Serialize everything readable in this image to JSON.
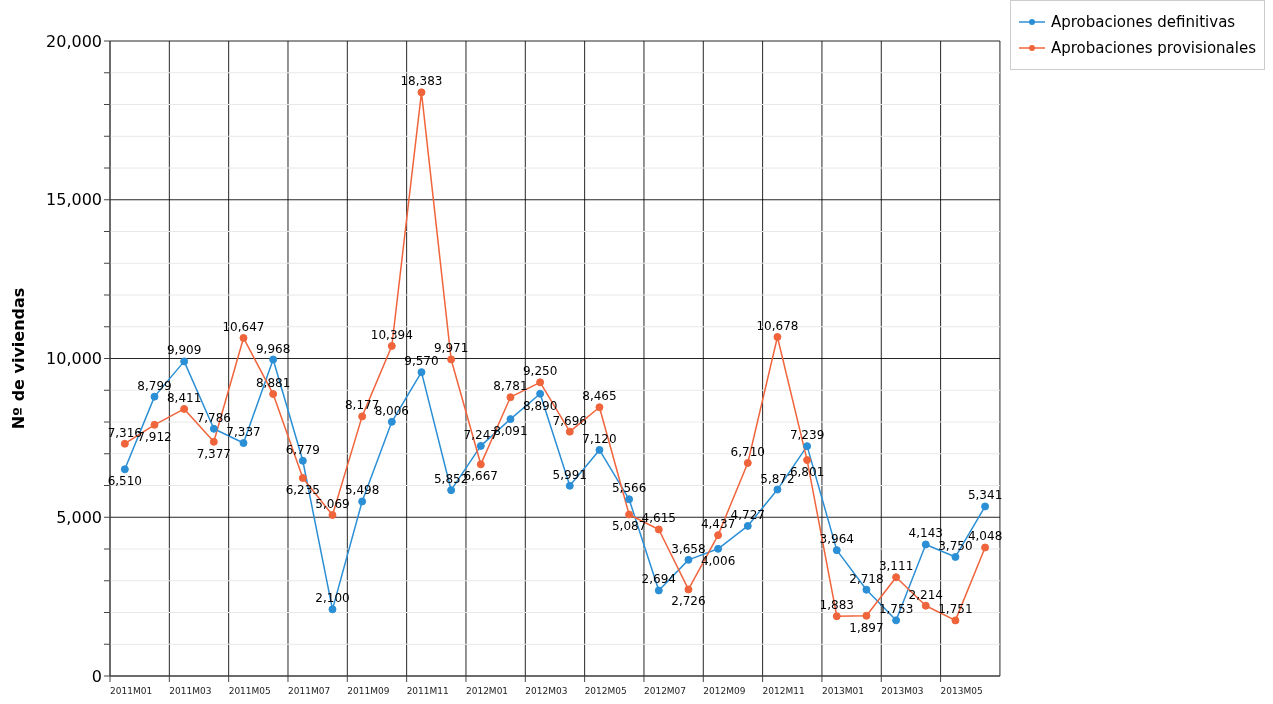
{
  "chart_data": {
    "type": "line",
    "ylabel": "Nº de viviendas",
    "categories": [
      "2011M01",
      null,
      "2011M03",
      null,
      "2011M05",
      null,
      "2011M07",
      null,
      "2011M09",
      null,
      "2011M11",
      null,
      "2012M01",
      null,
      "2012M03",
      null,
      "2012M05",
      null,
      "2012M07",
      null,
      "2012M09",
      null,
      "2012M11",
      null,
      "2013M01",
      null,
      "2013M03",
      null,
      "2013M05",
      null
    ],
    "series": [
      {
        "name": "Aprobaciones definitivas",
        "color": "#2b8fd6",
        "values": [
          6510,
          8799,
          9909,
          7786,
          7337,
          9968,
          6779,
          2100,
          5498,
          8006,
          9570,
          5852,
          7247,
          8091,
          8890,
          5991,
          7120,
          5566,
          2694,
          3658,
          4006,
          4727,
          5872,
          7239,
          3964,
          2718,
          1753,
          4143,
          3750,
          5341
        ],
        "value_labels": [
          "6,510",
          "8,799",
          "9,909",
          "7,786",
          "7,337",
          "9,968",
          "6,779",
          "2,100",
          "5,498",
          "8,006",
          "9,570",
          "5,852",
          "7,247",
          "8,091",
          "8,890",
          "5,991",
          "7,120",
          "5,566",
          "2,694",
          "3,658",
          "4,006",
          "4,727",
          "5,872",
          "7,239",
          "3,964",
          "2,718",
          "1,753",
          "4,143",
          "3,750",
          "5,341"
        ]
      },
      {
        "name": "Aprobaciones provisionales",
        "color": "#f0643c",
        "values": [
          7316,
          7912,
          8411,
          7377,
          10647,
          8881,
          6235,
          5069,
          8177,
          10394,
          18383,
          9971,
          6667,
          8781,
          9250,
          7696,
          8465,
          5087,
          4615,
          2726,
          4437,
          6710,
          10678,
          6801,
          1883,
          1897,
          3111,
          2214,
          1751,
          4048
        ],
        "value_labels": [
          "7,316",
          "7,912",
          "8,411",
          "7,377",
          "10,647",
          "8,881",
          "6,235",
          "5,069",
          "8,177",
          "10,394",
          "18,383",
          "9,971",
          "6,667",
          "8,781",
          "9,250",
          "7,696",
          "8,465",
          "5,087",
          "4,615",
          "2,726",
          "4,437",
          "6,710",
          "10,678",
          "6,801",
          "1,883",
          "1,897",
          "3,111",
          "2,214",
          "1,751",
          "4,048"
        ]
      }
    ],
    "ylim": [
      0,
      20000
    ],
    "yticks": [
      0,
      {
        "value": 1000,
        "label": null
      },
      {
        "value": 2000,
        "label": null
      },
      {
        "value": 3000,
        "label": null
      },
      {
        "value": 4000,
        "label": null
      },
      {
        "value": 5000,
        "label": "5,000"
      },
      {
        "value": 6000,
        "label": null
      },
      {
        "value": 7000,
        "label": null
      },
      {
        "value": 8000,
        "label": null
      },
      {
        "value": 9000,
        "label": null
      },
      {
        "value": 10000,
        "label": "10,000"
      },
      {
        "value": 11000,
        "label": null
      },
      {
        "value": 12000,
        "label": null
      },
      {
        "value": 13000,
        "label": null
      },
      {
        "value": 14000,
        "label": null
      },
      {
        "value": 15000,
        "label": "15,000"
      },
      {
        "value": 16000,
        "label": null
      },
      {
        "value": 17000,
        "label": null
      },
      {
        "value": 18000,
        "label": null
      },
      {
        "value": 19000,
        "label": null
      },
      {
        "value": 20000,
        "label": "20,000"
      }
    ],
    "grid": true,
    "legend": "top right",
    "marker": "circle",
    "line_style": "solid"
  }
}
